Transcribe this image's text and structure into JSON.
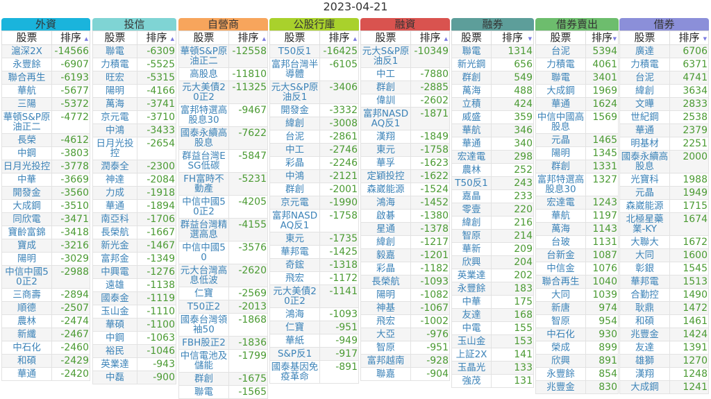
{
  "date": "2023-04-21",
  "panels": [
    {
      "title": "外資",
      "color": "#1ab4dc",
      "h_stock": "股票",
      "h_rank": "排序",
      "sort": "up",
      "rows": [
        [
          "滬深2X",
          "-14566"
        ],
        [
          "永豐餘",
          "-6907"
        ],
        [
          "聯合再生",
          "-6193"
        ],
        [
          "華航",
          "-5677"
        ],
        [
          "三陽",
          "-5372"
        ],
        [
          "華頓S&P原油正二",
          "-4772"
        ],
        [
          "長榮",
          "-4612"
        ],
        [
          "中鋼",
          "-3803"
        ],
        [
          "日月光投控",
          "-3778"
        ],
        [
          "中華",
          "-3669"
        ],
        [
          "開發金",
          "-3560"
        ],
        [
          "大成鋼",
          "-3510"
        ],
        [
          "同欣電",
          "-3471"
        ],
        [
          "寶齡富錦",
          "-3418"
        ],
        [
          "寶成",
          "-3216"
        ],
        [
          "陽明",
          "-3029"
        ],
        [
          "中信中國50正2",
          "-2988"
        ],
        [
          "三商壽",
          "-2894"
        ],
        [
          "順德",
          "-2507"
        ],
        [
          "農林",
          "-2474"
        ],
        [
          "新纖",
          "-2467"
        ],
        [
          "中石化",
          "-2460"
        ],
        [
          "和碩",
          "-2429"
        ],
        [
          "華通",
          "-2420"
        ]
      ]
    },
    {
      "title": "投信",
      "color": "#7fd4d4",
      "h_stock": "股票",
      "h_rank": "排序",
      "sort": "up",
      "rows": [
        [
          "聯電",
          "-6309"
        ],
        [
          "力積電",
          "-5525"
        ],
        [
          "旺宏",
          "-5315"
        ],
        [
          "陽明",
          "-4166"
        ],
        [
          "萬海",
          "-3741"
        ],
        [
          "京元電",
          "-3710"
        ],
        [
          "中鴻",
          "-3433"
        ],
        [
          "日月光投控",
          "-2654"
        ],
        [
          "潤泰全",
          "-2300"
        ],
        [
          "神達",
          "-2084"
        ],
        [
          "力成",
          "-1918"
        ],
        [
          "華通",
          "-1894"
        ],
        [
          "南亞科",
          "-1706"
        ],
        [
          "長榮航",
          "-1667"
        ],
        [
          "新光金",
          "-1467"
        ],
        [
          "富邦金",
          "-1349"
        ],
        [
          "中興電",
          "-1276"
        ],
        [
          "遠雄",
          "-1138"
        ],
        [
          "國泰金",
          "-1119"
        ],
        [
          "玉山金",
          "-1110"
        ],
        [
          "華碩",
          "-1100"
        ],
        [
          "中鋼",
          "-1063"
        ],
        [
          "裕民",
          "-1046"
        ],
        [
          "英業達",
          "-943"
        ],
        [
          "中磊",
          "-900"
        ]
      ]
    },
    {
      "title": "自營商",
      "color": "#f7a55c",
      "h_stock": "股票",
      "h_rank": "排序",
      "sort": "up",
      "rows": [
        [
          "華頓S&P原油正二",
          "-12558"
        ],
        [
          "高股息",
          "-11810"
        ],
        [
          "元大美債20正2",
          "-11325"
        ],
        [
          "富邦特選高股息30",
          "-9467"
        ],
        [
          "國泰永續高股息",
          "-7622"
        ],
        [
          "群益台灣ESG低碳",
          "-5847"
        ],
        [
          "FH富時不動產",
          "-5231"
        ],
        [
          "中信中國50正2",
          "-4205"
        ],
        [
          "群益台灣精選高息",
          "-4155"
        ],
        [
          "中信中國50",
          "-3576"
        ],
        [
          "元大台灣高息低波",
          "-2620"
        ],
        [
          "仁寶",
          "-2569"
        ],
        [
          "T50正2",
          "-2013"
        ],
        [
          "國泰台灣領袖50",
          "-1868"
        ],
        [
          "FBH股正2",
          "-1836"
        ],
        [
          "中信電池及儲能",
          "-1799"
        ],
        [
          "群創",
          "-1675"
        ],
        [
          "聯電",
          "-1565"
        ]
      ]
    },
    {
      "title": "公股行庫",
      "color": "#a9d12c",
      "h_stock": "股票",
      "h_rank": "排序",
      "sort": "up",
      "rows": [
        [
          "T50反1",
          "-16425"
        ],
        [
          "富邦台灣半導體",
          "-6105"
        ],
        [
          "元大S&P原油反1",
          "-3406"
        ],
        [
          "開發金",
          "-3332"
        ],
        [
          "緯創",
          "-3008"
        ],
        [
          "台泥",
          "-2861"
        ],
        [
          "中工",
          "-2746"
        ],
        [
          "彩晶",
          "-2246"
        ],
        [
          "中鴻",
          "-2121"
        ],
        [
          "群創",
          "-2001"
        ],
        [
          "京元電",
          "-1990"
        ],
        [
          "富邦NASDAQ反1",
          "-1758"
        ],
        [
          "東元",
          "-1735"
        ],
        [
          "華邦電",
          "-1425"
        ],
        [
          "奇鋐",
          "-1318"
        ],
        [
          "飛宏",
          "-1172"
        ],
        [
          "元大美債20正2",
          "-1141"
        ],
        [
          "鴻海",
          "-1093"
        ],
        [
          "仁寶",
          "-951"
        ],
        [
          "華紙",
          "-949"
        ],
        [
          "S&P反1",
          "-917"
        ],
        [
          "國泰基因免疫革命",
          "-891"
        ]
      ]
    },
    {
      "title": "融資",
      "color": "#d9534f",
      "h_stock": "股票",
      "h_rank": "排序",
      "sort": "up",
      "rows": [
        [
          "元大S&P原油反1",
          "-10349"
        ],
        [
          "中工",
          "-7880"
        ],
        [
          "群創",
          "-2885"
        ],
        [
          "偉訓",
          "-2602"
        ],
        [
          "富邦NASDAQ反1",
          "-1871"
        ],
        [
          "漢翔",
          "-1849"
        ],
        [
          "東元",
          "-1758"
        ],
        [
          "華孚",
          "-1623"
        ],
        [
          "定穎投控",
          "-1622"
        ],
        [
          "森崴能源",
          "-1524"
        ],
        [
          "鴻海",
          "-1452"
        ],
        [
          "啟碁",
          "-1380"
        ],
        [
          "星通",
          "-1378"
        ],
        [
          "緯創",
          "-1217"
        ],
        [
          "毅嘉",
          "-1201"
        ],
        [
          "彩晶",
          "-1182"
        ],
        [
          "長榮航",
          "-1093"
        ],
        [
          "陽明",
          "-1082"
        ],
        [
          "神基",
          "-1067"
        ],
        [
          "飛宏",
          "-1002"
        ],
        [
          "大亞",
          "-976"
        ],
        [
          "智原",
          "-951"
        ],
        [
          "富邦越南",
          "-928"
        ],
        [
          "聯嘉",
          "-904"
        ]
      ]
    },
    {
      "title": "融券",
      "color": "#5d9e9a",
      "h_stock": "股票",
      "h_rank": "排序",
      "sort": "down",
      "rows": [
        [
          "聯電",
          "1314"
        ],
        [
          "新光鋼",
          "656"
        ],
        [
          "群創",
          "549"
        ],
        [
          "萬海",
          "488"
        ],
        [
          "立積",
          "424"
        ],
        [
          "威盛",
          "359"
        ],
        [
          "華航",
          "346"
        ],
        [
          "華通",
          "340"
        ],
        [
          "宏達電",
          "298"
        ],
        [
          "農林",
          "252"
        ],
        [
          "T50反1",
          "243"
        ],
        [
          "嘉晶",
          "233"
        ],
        [
          "零壹",
          "220"
        ],
        [
          "緯創",
          "216"
        ],
        [
          "智原",
          "214"
        ],
        [
          "華新",
          "209"
        ],
        [
          "欣興",
          "204"
        ],
        [
          "英業達",
          "202"
        ],
        [
          "永豐餘",
          "183"
        ],
        [
          "中華",
          "175"
        ],
        [
          "友達",
          "168"
        ],
        [
          "中電",
          "155"
        ],
        [
          "玉山金",
          "153"
        ],
        [
          "上証2X",
          "141"
        ],
        [
          "玉晶光",
          "133"
        ],
        [
          "強茂",
          "131"
        ]
      ]
    },
    {
      "title": "借券賣出",
      "color": "#6dbd6d",
      "h_stock": "股票",
      "h_rank": "排序",
      "sort": "down",
      "rows": [
        [
          "台泥",
          "5394"
        ],
        [
          "力積電",
          "4061"
        ],
        [
          "聯電",
          "3401"
        ],
        [
          "大成鋼",
          "1969"
        ],
        [
          "華通",
          "1624"
        ],
        [
          "中信中國高股息",
          "1569"
        ],
        [
          "元晶",
          "1465"
        ],
        [
          "陽明",
          "1345"
        ],
        [
          "群創",
          "1331"
        ],
        [
          "富邦特選高股息30",
          "1327"
        ],
        [
          "宏達電",
          "1243"
        ],
        [
          "華航",
          "1197"
        ],
        [
          "萬海",
          "1143"
        ],
        [
          "台玻",
          "1131"
        ],
        [
          "台新金",
          "1087"
        ],
        [
          "中信金",
          "1076"
        ],
        [
          "聯合再生",
          "1040"
        ],
        [
          "大同",
          "1039"
        ],
        [
          "新唐",
          "974"
        ],
        [
          "智原",
          "954"
        ],
        [
          "中石化",
          "930"
        ],
        [
          "榮成",
          "899"
        ],
        [
          "欣興",
          "891"
        ],
        [
          "永豐餘",
          "854"
        ],
        [
          "兆豐金",
          "830"
        ]
      ]
    },
    {
      "title": "借券",
      "color": "#8b8fd9",
      "h_stock": "股票",
      "h_rank": "排序",
      "sort": "down",
      "rows": [
        [
          "廣達",
          "6706"
        ],
        [
          "力積電",
          "6371"
        ],
        [
          "台泥",
          "4741"
        ],
        [
          "緯創",
          "3634"
        ],
        [
          "文曄",
          "2833"
        ],
        [
          "世紀鋼",
          "2538"
        ],
        [
          "華通",
          "2379"
        ],
        [
          "明基材",
          "2251"
        ],
        [
          "國泰永續高股息",
          "2000"
        ],
        [
          "光寶科",
          "1988"
        ],
        [
          "元晶",
          "1949"
        ],
        [
          "森崴能源",
          "1715"
        ],
        [
          "北極星藥業-KY",
          "1674"
        ],
        [
          "大聯大",
          "1672"
        ],
        [
          "大同",
          "1600"
        ],
        [
          "彰銀",
          "1545"
        ],
        [
          "華邦電",
          "1513"
        ],
        [
          "合勤控",
          "1490"
        ],
        [
          "耿鼎",
          "1472"
        ],
        [
          "和碩",
          "1461"
        ],
        [
          "兆豐金",
          "1424"
        ],
        [
          "友達",
          "1391"
        ],
        [
          "雄獅",
          "1270"
        ],
        [
          "漢翔",
          "1248"
        ],
        [
          "大成鋼",
          "1241"
        ]
      ]
    }
  ]
}
